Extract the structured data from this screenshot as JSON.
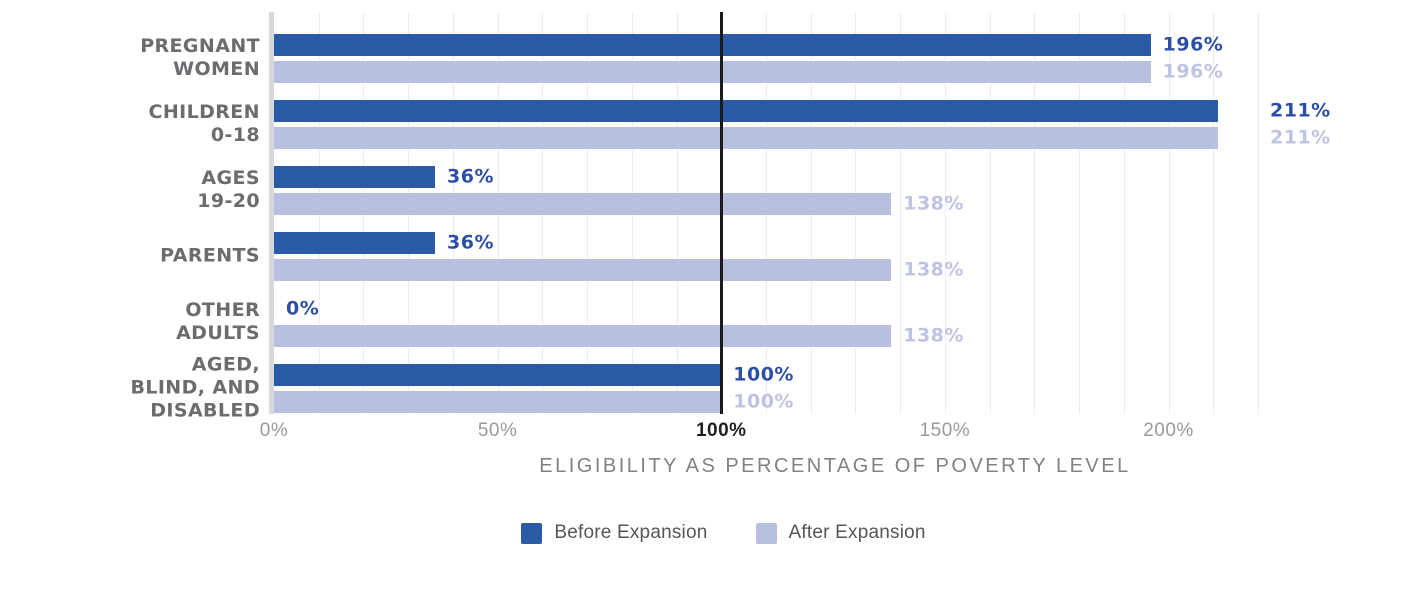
{
  "page": {
    "background": "#FFFFFF"
  },
  "chart_data": {
    "type": "bar",
    "orientation": "horizontal",
    "xlabel": "ELIGIBILITY AS PERCENTAGE OF POVERTY LEVEL",
    "categories": [
      "Pregnant Women",
      "Children 0-18",
      "Ages 19-20",
      "Parents",
      "Other Adults",
      "Aged, Blind, and Disabled"
    ],
    "categories_display": [
      "PREGNANT\nWOMEN",
      "CHILDREN\n0-18",
      "AGES\n19-20",
      "PARENTS",
      "OTHER\nADULTS",
      "AGED,\nBLIND, AND\nDISABLED"
    ],
    "series": [
      {
        "name": "Before Expansion",
        "values": [
          196,
          211,
          36,
          36,
          0,
          100
        ],
        "labels": [
          "196%",
          "211%",
          "36%",
          "36%",
          "0%",
          "100%"
        ],
        "color": "#2B5AA6",
        "label_color": "#2B4FA4"
      },
      {
        "name": "After Expansion",
        "values": [
          196,
          211,
          138,
          138,
          138,
          100
        ],
        "labels": [
          "196%",
          "211%",
          "138%",
          "138%",
          "138%",
          "100%"
        ],
        "color": "#B9BFDE",
        "label_color": "#BDC3E2"
      }
    ],
    "xlim": [
      0,
      220
    ],
    "xticks": [
      {
        "value": 0,
        "label": "0%"
      },
      {
        "value": 50,
        "label": "50%"
      },
      {
        "value": 100,
        "label": "100%",
        "emphasis": true
      },
      {
        "value": 150,
        "label": "150%"
      },
      {
        "value": 200,
        "label": "200%"
      }
    ],
    "gridline_step": 10,
    "reference_line": {
      "value": 100,
      "color": "#1B1B1B"
    },
    "legend_position": "bottom",
    "grid": true
  },
  "colors": {
    "gridline": "#EAEBEE",
    "axis_line": "#D7D8DB",
    "category_label": "#6B6C6F",
    "tick": "#97999C",
    "tick_emphasis": "#1F1F1F",
    "axis_title": "#7F8184",
    "legend_text": "#55565A"
  }
}
